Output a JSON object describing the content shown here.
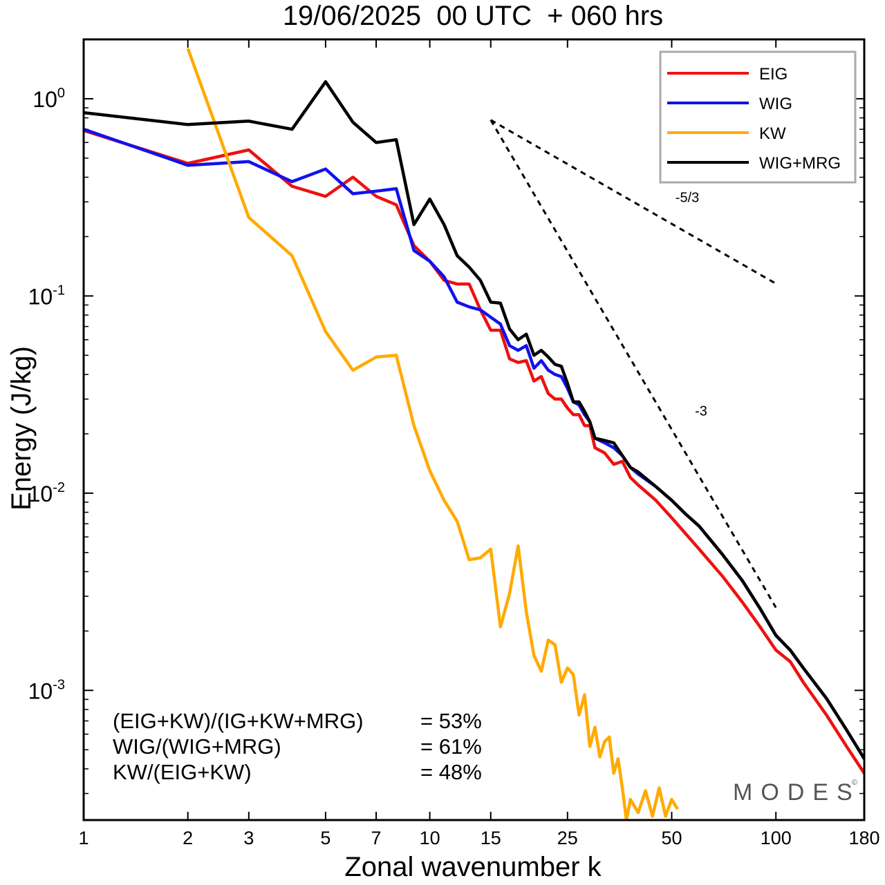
{
  "chart_data": {
    "type": "line",
    "title": "19/06/2025  00 UTC  + 060 hrs",
    "xlabel": "Zonal wavenumber k",
    "ylabel": "Energy (J/kg)",
    "x_scale": "log",
    "y_scale": "log",
    "xlim": [
      1,
      180
    ],
    "ylim": [
      0.00022,
      2.0
    ],
    "x_ticks": [
      1,
      2,
      3,
      5,
      7,
      10,
      15,
      25,
      50,
      100,
      180
    ],
    "y_ticks": [
      {
        "value": 1,
        "base": "10",
        "exp": "0"
      },
      {
        "value": 0.1,
        "base": "10",
        "exp": "-1"
      },
      {
        "value": 0.01,
        "base": "10",
        "exp": "-2"
      },
      {
        "value": 0.001,
        "base": "10",
        "exp": "-3"
      }
    ],
    "legend_position": "top-right",
    "grid": false,
    "series": [
      {
        "name": "EIG",
        "color": "#ee1111",
        "points": [
          [
            1,
            0.69
          ],
          [
            2,
            0.47
          ],
          [
            3,
            0.55
          ],
          [
            4,
            0.36
          ],
          [
            5,
            0.32
          ],
          [
            6,
            0.4
          ],
          [
            7,
            0.32
          ],
          [
            8,
            0.29
          ],
          [
            9,
            0.18
          ],
          [
            10,
            0.15
          ],
          [
            11,
            0.12
          ],
          [
            12,
            0.115
          ],
          [
            13,
            0.115
          ],
          [
            14,
            0.085
          ],
          [
            15,
            0.067
          ],
          [
            16,
            0.067
          ],
          [
            17,
            0.048
          ],
          [
            18,
            0.046
          ],
          [
            19,
            0.047
          ],
          [
            20,
            0.037
          ],
          [
            21,
            0.039
          ],
          [
            22,
            0.032
          ],
          [
            23,
            0.03
          ],
          [
            24,
            0.03
          ],
          [
            25,
            0.027
          ],
          [
            26,
            0.025
          ],
          [
            27,
            0.025
          ],
          [
            28,
            0.022
          ],
          [
            29,
            0.022
          ],
          [
            30,
            0.017
          ],
          [
            32,
            0.016
          ],
          [
            34,
            0.014
          ],
          [
            36,
            0.0145
          ],
          [
            38,
            0.012
          ],
          [
            40,
            0.011
          ],
          [
            45,
            0.0092
          ],
          [
            50,
            0.0075
          ],
          [
            55,
            0.0062
          ],
          [
            60,
            0.0052
          ],
          [
            70,
            0.0038
          ],
          [
            80,
            0.0028
          ],
          [
            90,
            0.0021
          ],
          [
            100,
            0.0016
          ],
          [
            110,
            0.0014
          ],
          [
            120,
            0.0011
          ],
          [
            140,
            0.00075
          ],
          [
            160,
            0.00052
          ],
          [
            180,
            0.00038
          ]
        ]
      },
      {
        "name": "WIG",
        "color": "#1111ee",
        "points": [
          [
            1,
            0.7
          ],
          [
            2,
            0.46
          ],
          [
            3,
            0.48
          ],
          [
            4,
            0.38
          ],
          [
            5,
            0.44
          ],
          [
            6,
            0.33
          ],
          [
            7,
            0.34
          ],
          [
            8,
            0.35
          ],
          [
            9,
            0.17
          ],
          [
            10,
            0.15
          ],
          [
            11,
            0.125
          ],
          [
            12,
            0.093
          ],
          [
            13,
            0.088
          ],
          [
            14,
            0.085
          ],
          [
            15,
            0.078
          ],
          [
            16,
            0.072
          ],
          [
            17,
            0.056
          ],
          [
            18,
            0.053
          ],
          [
            19,
            0.056
          ],
          [
            20,
            0.043
          ],
          [
            21,
            0.047
          ],
          [
            22,
            0.042
          ],
          [
            23,
            0.04
          ],
          [
            24,
            0.039
          ],
          [
            25,
            0.034
          ],
          [
            26,
            0.029
          ],
          [
            27,
            0.028
          ],
          [
            28,
            0.025
          ],
          [
            29,
            0.023
          ],
          [
            30,
            0.019
          ],
          [
            32,
            0.018
          ],
          [
            34,
            0.017
          ],
          [
            36,
            0.0155
          ],
          [
            38,
            0.0135
          ],
          [
            40,
            0.0125
          ],
          [
            45,
            0.0108
          ],
          [
            50,
            0.0092
          ],
          [
            55,
            0.0078
          ],
          [
            60,
            0.0068
          ],
          [
            70,
            0.0049
          ],
          [
            80,
            0.0036
          ],
          [
            90,
            0.0026
          ],
          [
            100,
            0.0019
          ],
          [
            110,
            0.0016
          ],
          [
            120,
            0.0013
          ],
          [
            140,
            0.00091
          ],
          [
            160,
            0.00063
          ],
          [
            180,
            0.00045
          ]
        ]
      },
      {
        "name": "KW",
        "color": "#ffaa00",
        "points": [
          [
            2,
            1.8
          ],
          [
            3,
            0.25
          ],
          [
            4,
            0.16
          ],
          [
            5,
            0.066
          ],
          [
            6,
            0.042
          ],
          [
            7,
            0.049
          ],
          [
            8,
            0.05
          ],
          [
            9,
            0.022
          ],
          [
            10,
            0.013
          ],
          [
            11,
            0.0092
          ],
          [
            12,
            0.0072
          ],
          [
            13,
            0.0046
          ],
          [
            14,
            0.0047
          ],
          [
            15,
            0.0052
          ],
          [
            16,
            0.0021
          ],
          [
            17,
            0.0031
          ],
          [
            18,
            0.0054
          ],
          [
            19,
            0.0025
          ],
          [
            20,
            0.0015
          ],
          [
            21,
            0.00125
          ],
          [
            22,
            0.0018
          ],
          [
            23,
            0.0017
          ],
          [
            24,
            0.0011
          ],
          [
            25,
            0.0013
          ],
          [
            26,
            0.0012
          ],
          [
            27,
            0.00075
          ],
          [
            28,
            0.00095
          ],
          [
            29,
            0.00052
          ],
          [
            30,
            0.00065
          ],
          [
            31,
            0.00046
          ],
          [
            32,
            0.00055
          ],
          [
            33,
            0.00058
          ],
          [
            34,
            0.00038
          ],
          [
            35,
            0.00045
          ],
          [
            36,
            0.00032
          ],
          [
            37,
            0.00022
          ],
          [
            38,
            0.00028
          ],
          [
            40,
            0.00024
          ],
          [
            42,
            0.00031
          ],
          [
            44,
            0.00023
          ],
          [
            46,
            0.00032
          ],
          [
            48,
            0.00023
          ],
          [
            50,
            0.00028
          ],
          [
            52,
            0.00025
          ]
        ]
      },
      {
        "name": "WIG+MRG",
        "color": "#000000",
        "points": [
          [
            1,
            0.85
          ],
          [
            2,
            0.74
          ],
          [
            3,
            0.77
          ],
          [
            4,
            0.7
          ],
          [
            5,
            1.22
          ],
          [
            6,
            0.76
          ],
          [
            7,
            0.6
          ],
          [
            8,
            0.62
          ],
          [
            9,
            0.23
          ],
          [
            10,
            0.31
          ],
          [
            11,
            0.23
          ],
          [
            12,
            0.16
          ],
          [
            13,
            0.14
          ],
          [
            14,
            0.12
          ],
          [
            15,
            0.093
          ],
          [
            16,
            0.092
          ],
          [
            17,
            0.068
          ],
          [
            18,
            0.06
          ],
          [
            19,
            0.064
          ],
          [
            20,
            0.05
          ],
          [
            21,
            0.053
          ],
          [
            22,
            0.049
          ],
          [
            23,
            0.045
          ],
          [
            24,
            0.044
          ],
          [
            25,
            0.036
          ],
          [
            26,
            0.029
          ],
          [
            27,
            0.029
          ],
          [
            28,
            0.026
          ],
          [
            29,
            0.023
          ],
          [
            30,
            0.019
          ],
          [
            32,
            0.0185
          ],
          [
            34,
            0.018
          ],
          [
            36,
            0.0155
          ],
          [
            38,
            0.0135
          ],
          [
            40,
            0.0128
          ],
          [
            45,
            0.0108
          ],
          [
            50,
            0.0092
          ],
          [
            55,
            0.0078
          ],
          [
            60,
            0.0068
          ],
          [
            70,
            0.0049
          ],
          [
            80,
            0.0036
          ],
          [
            90,
            0.0026
          ],
          [
            100,
            0.0019
          ],
          [
            110,
            0.0016
          ],
          [
            120,
            0.0013
          ],
          [
            140,
            0.00091
          ],
          [
            160,
            0.00063
          ],
          [
            180,
            0.00045
          ]
        ]
      }
    ],
    "reference_lines": [
      {
        "label": "-5/3",
        "from": [
          15,
          0.78
        ],
        "to": [
          100,
          0.1155
        ]
      },
      {
        "label": "-3",
        "from": [
          15,
          0.78
        ],
        "to": [
          100,
          0.00263
        ]
      }
    ],
    "stats": [
      {
        "label": "(EIG+KW)/(IG+KW+MRG)",
        "value": "= 53%"
      },
      {
        "label": "WIG/(WIG+MRG)",
        "value": "= 61%"
      },
      {
        "label": "KW/(EIG+KW)",
        "value": "= 48%"
      }
    ],
    "watermark": "MODES",
    "watermark_symbol": "©"
  }
}
